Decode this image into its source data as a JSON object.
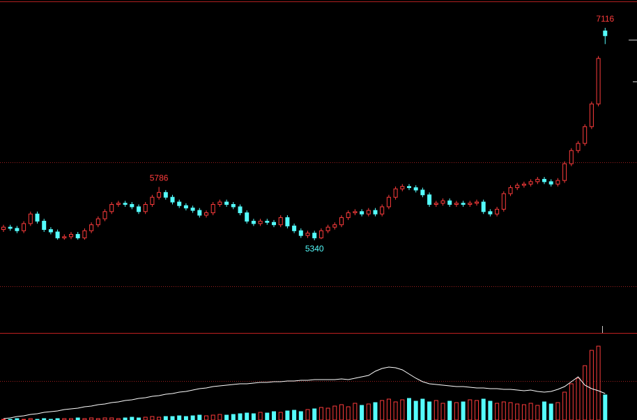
{
  "chart_data": {
    "type": "candlestick",
    "up_color": "#ff3c3c",
    "down_color": "#54fcfc",
    "line_color": "#ffffff",
    "ylim": [
      4566,
      7331
    ],
    "volume_ylim": [
      0,
      120
    ],
    "open": [
      5430,
      5450,
      5440,
      5420,
      5480,
      5560,
      5500,
      5430,
      5410,
      5360,
      5370,
      5390,
      5360,
      5420,
      5470,
      5520,
      5580,
      5640,
      5650,
      5640,
      5620,
      5580,
      5640,
      5700,
      5740,
      5700,
      5660,
      5630,
      5610,
      5590,
      5550,
      5570,
      5640,
      5660,
      5640,
      5620,
      5570,
      5500,
      5480,
      5500,
      5490,
      5470,
      5530,
      5460,
      5420,
      5380,
      5400,
      5360,
      5420,
      5450,
      5470,
      5530,
      5570,
      5580,
      5560,
      5590,
      5560,
      5620,
      5700,
      5770,
      5790,
      5780,
      5760,
      5720,
      5640,
      5650,
      5670,
      5640,
      5650,
      5640,
      5650,
      5660,
      5580,
      5560,
      5600,
      5730,
      5780,
      5800,
      5810,
      5830,
      5850,
      5830,
      5810,
      5840,
      5980,
      6090,
      6150,
      6290,
      6480,
      7090
    ],
    "high": [
      5470,
      5470,
      5460,
      5500,
      5580,
      5580,
      5520,
      5450,
      5430,
      5390,
      5410,
      5410,
      5440,
      5490,
      5540,
      5600,
      5660,
      5670,
      5670,
      5660,
      5640,
      5660,
      5720,
      5786,
      5760,
      5720,
      5680,
      5650,
      5630,
      5610,
      5590,
      5660,
      5680,
      5680,
      5660,
      5640,
      5590,
      5520,
      5520,
      5520,
      5510,
      5550,
      5550,
      5480,
      5440,
      5420,
      5420,
      5440,
      5470,
      5490,
      5550,
      5590,
      5600,
      5600,
      5610,
      5610,
      5640,
      5720,
      5790,
      5810,
      5810,
      5800,
      5780,
      5740,
      5670,
      5690,
      5690,
      5670,
      5670,
      5670,
      5680,
      5680,
      5600,
      5620,
      5750,
      5800,
      5820,
      5830,
      5850,
      5870,
      5870,
      5850,
      5860,
      6000,
      6110,
      6170,
      6310,
      6500,
      6880,
      7116
    ],
    "low": [
      5410,
      5420,
      5400,
      5400,
      5460,
      5480,
      5410,
      5390,
      5345,
      5345,
      5350,
      5345,
      5345,
      5400,
      5450,
      5500,
      5560,
      5620,
      5620,
      5600,
      5560,
      5560,
      5620,
      5680,
      5680,
      5640,
      5610,
      5590,
      5570,
      5530,
      5530,
      5550,
      5620,
      5620,
      5600,
      5550,
      5480,
      5460,
      5460,
      5470,
      5450,
      5450,
      5440,
      5400,
      5360,
      5360,
      5340,
      5350,
      5400,
      5430,
      5450,
      5510,
      5550,
      5540,
      5540,
      5540,
      5540,
      5600,
      5680,
      5750,
      5760,
      5740,
      5700,
      5620,
      5620,
      5630,
      5620,
      5620,
      5620,
      5620,
      5630,
      5560,
      5540,
      5540,
      5580,
      5710,
      5760,
      5780,
      5790,
      5810,
      5810,
      5790,
      5790,
      5820,
      5960,
      6070,
      6130,
      6270,
      6460,
      6980
    ],
    "close": [
      5450,
      5440,
      5420,
      5480,
      5560,
      5500,
      5430,
      5410,
      5360,
      5370,
      5390,
      5360,
      5420,
      5470,
      5520,
      5580,
      5640,
      5650,
      5640,
      5620,
      5580,
      5640,
      5700,
      5740,
      5700,
      5660,
      5630,
      5610,
      5590,
      5550,
      5570,
      5640,
      5660,
      5640,
      5620,
      5570,
      5500,
      5480,
      5500,
      5490,
      5470,
      5530,
      5460,
      5420,
      5380,
      5400,
      5360,
      5420,
      5450,
      5470,
      5530,
      5570,
      5580,
      5560,
      5590,
      5560,
      5620,
      5700,
      5770,
      5790,
      5780,
      5760,
      5720,
      5640,
      5650,
      5670,
      5640,
      5650,
      5640,
      5650,
      5660,
      5580,
      5560,
      5600,
      5730,
      5780,
      5800,
      5810,
      5830,
      5850,
      5830,
      5810,
      5840,
      5980,
      6090,
      6150,
      6290,
      6480,
      6860,
      7050
    ],
    "volume": [
      1,
      1,
      2,
      1,
      2,
      1,
      2,
      1,
      2,
      2,
      2,
      3,
      2,
      3,
      2,
      3,
      3,
      2,
      3,
      4,
      3,
      4,
      5,
      4,
      5,
      5,
      6,
      5,
      6,
      7,
      6,
      7,
      8,
      7,
      8,
      9,
      10,
      9,
      11,
      10,
      12,
      11,
      13,
      14,
      12,
      15,
      16,
      18,
      17,
      20,
      22,
      19,
      24,
      21,
      23,
      25,
      28,
      30,
      26,
      29,
      31,
      27,
      30,
      26,
      28,
      24,
      27,
      25,
      26,
      29,
      28,
      30,
      27,
      24,
      26,
      25,
      23,
      22,
      24,
      21,
      26,
      23,
      25,
      40,
      52,
      60,
      78,
      100,
      106,
      36
    ],
    "open_interest": [
      2,
      3,
      5,
      6,
      8,
      9,
      11,
      12,
      13,
      15,
      16,
      17,
      19,
      20,
      22,
      23,
      25,
      26,
      28,
      29,
      31,
      32,
      34,
      35,
      37,
      38,
      40,
      41,
      43,
      45,
      46,
      48,
      49,
      50,
      51,
      52,
      52,
      53,
      54,
      54,
      55,
      55,
      56,
      56,
      57,
      57,
      58,
      58,
      58,
      58,
      59,
      58,
      60,
      62,
      64,
      70,
      74,
      76,
      75,
      72,
      66,
      60,
      55,
      52,
      51,
      50,
      49,
      48,
      48,
      47,
      46,
      46,
      45,
      45,
      44,
      44,
      43,
      42,
      43,
      41,
      40,
      41,
      44,
      48,
      55,
      62,
      50,
      45,
      42,
      38
    ]
  }
}
